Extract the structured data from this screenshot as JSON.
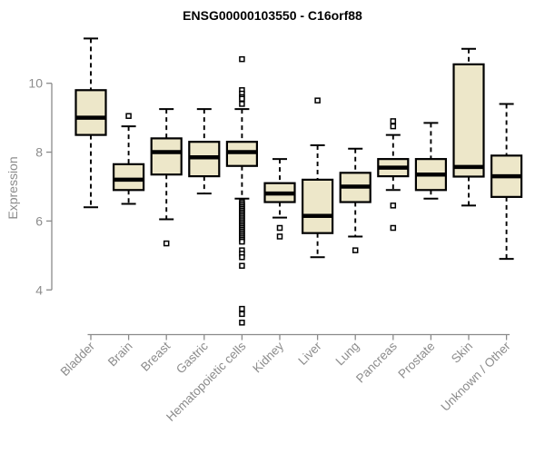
{
  "title": "ENSG00000103550 - C16orf88",
  "colors": {
    "box_fill": "#ede7c9",
    "box_border": "#000000",
    "median": "#000000",
    "axis": "#8a8a8a",
    "tick_label": "#8c8c8c",
    "title": "#000000",
    "background": "#ffffff"
  },
  "chart_data": {
    "type": "boxplot",
    "title": "ENSG00000103550 - C16orf88",
    "xlabel": "",
    "ylabel": "Expression",
    "yticks": [
      4,
      6,
      8,
      10
    ],
    "ylim": [
      4,
      10
    ],
    "grid": false,
    "legend": false,
    "x_label_rotation_deg": 45,
    "categories": [
      "Bladder",
      "Brain",
      "Breast",
      "Gastric",
      "Hematopoietic cells",
      "Kidney",
      "Liver",
      "Lung",
      "Pancreas",
      "Prostate",
      "Skin",
      "Unknown / Other"
    ],
    "boxes": [
      {
        "category": "Bladder",
        "whisker_low": 6.4,
        "q1": 8.5,
        "median": 9.0,
        "q3": 9.8,
        "whisker_high": 11.3,
        "outliers": []
      },
      {
        "category": "Brain",
        "whisker_low": 6.5,
        "q1": 6.9,
        "median": 7.2,
        "q3": 7.65,
        "whisker_high": 8.75,
        "outliers": [
          9.05
        ]
      },
      {
        "category": "Breast",
        "whisker_low": 6.05,
        "q1": 7.35,
        "median": 8.0,
        "q3": 8.4,
        "whisker_high": 9.25,
        "outliers": [
          5.35
        ]
      },
      {
        "category": "Gastric",
        "whisker_low": 6.8,
        "q1": 7.3,
        "median": 7.85,
        "q3": 8.3,
        "whisker_high": 9.25,
        "outliers": []
      },
      {
        "category": "Hematopoietic cells",
        "whisker_low": 6.65,
        "q1": 7.6,
        "median": 8.0,
        "q3": 8.3,
        "whisker_high": 9.25,
        "outliers": [
          10.7,
          9.8,
          9.7,
          9.6,
          9.55,
          9.4,
          6.55,
          6.5,
          6.45,
          6.4,
          6.35,
          6.3,
          6.25,
          6.2,
          6.15,
          6.1,
          6.05,
          6.0,
          5.95,
          5.9,
          5.85,
          5.8,
          5.75,
          5.7,
          5.65,
          5.6,
          5.55,
          5.5,
          5.45,
          5.4,
          5.15,
          5.05,
          4.95,
          4.7,
          3.45,
          3.3,
          3.05
        ]
      },
      {
        "category": "Kidney",
        "whisker_low": 6.1,
        "q1": 6.55,
        "median": 6.8,
        "q3": 7.1,
        "whisker_high": 7.8,
        "outliers": [
          5.8,
          5.55
        ]
      },
      {
        "category": "Liver",
        "whisker_low": 4.95,
        "q1": 5.65,
        "median": 6.15,
        "q3": 7.2,
        "whisker_high": 8.2,
        "outliers": [
          9.5
        ]
      },
      {
        "category": "Lung",
        "whisker_low": 5.55,
        "q1": 6.55,
        "median": 7.0,
        "q3": 7.4,
        "whisker_high": 8.1,
        "outliers": [
          5.15
        ]
      },
      {
        "category": "Pancreas",
        "whisker_low": 6.9,
        "q1": 7.3,
        "median": 7.55,
        "q3": 7.8,
        "whisker_high": 8.5,
        "outliers": [
          8.9,
          8.75,
          6.45,
          5.8
        ]
      },
      {
        "category": "Prostate",
        "whisker_low": 6.65,
        "q1": 6.9,
        "median": 7.35,
        "q3": 7.8,
        "whisker_high": 8.85,
        "outliers": []
      },
      {
        "category": "Skin",
        "whisker_low": 6.45,
        "q1": 7.29,
        "median": 7.57,
        "q3": 10.55,
        "whisker_high": 11.0,
        "outliers": []
      },
      {
        "category": "Unknown / Other",
        "whisker_low": 4.9,
        "q1": 6.7,
        "median": 7.3,
        "q3": 7.9,
        "whisker_high": 9.4,
        "outliers": []
      }
    ]
  }
}
